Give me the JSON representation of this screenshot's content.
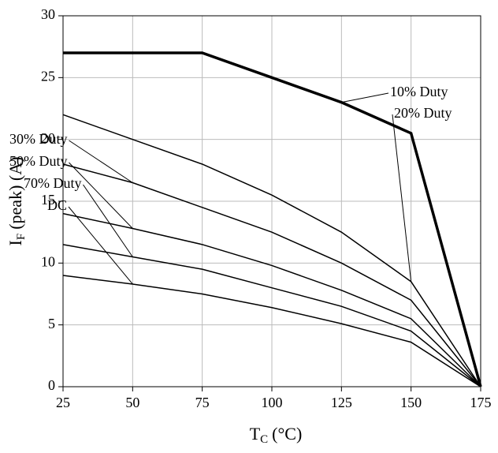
{
  "chart_data": {
    "type": "line",
    "x_label": {
      "symbol": "T",
      "subscript": "C",
      "unit": "(°C)"
    },
    "y_label": {
      "symbol": "I",
      "subscript": "F",
      "unit": "(peak) (A)"
    },
    "x": [
      25,
      50,
      75,
      100,
      125,
      150,
      175
    ],
    "series": [
      {
        "name": "10% Duty",
        "color": "#000000",
        "values": [
          27,
          27,
          27,
          25,
          23,
          20.5,
          0
        ]
      },
      {
        "name": "20% Duty",
        "color": "#000000",
        "values": [
          22,
          20,
          18,
          15.5,
          12.5,
          8.5,
          0
        ]
      },
      {
        "name": "30% Duty",
        "color": "#000000",
        "values": [
          18,
          16.5,
          14.5,
          12.5,
          10,
          7,
          0
        ]
      },
      {
        "name": "50% Duty",
        "color": "#000000",
        "values": [
          14,
          12.8,
          11.5,
          9.8,
          7.8,
          5.5,
          0
        ]
      },
      {
        "name": "70% Duty",
        "color": "#000000",
        "values": [
          11.5,
          10.5,
          9.5,
          8,
          6.5,
          4.5,
          0
        ]
      },
      {
        "name": "DC",
        "color": "#000000",
        "values": [
          9,
          8.3,
          7.5,
          6.4,
          5.1,
          3.6,
          0
        ]
      }
    ],
    "xlim": [
      25,
      175
    ],
    "xticks": [
      25,
      50,
      75,
      100,
      125,
      150,
      175
    ],
    "ylim": [
      0,
      30
    ],
    "yticks": [
      0,
      5,
      10,
      15,
      20,
      25,
      30
    ],
    "grid": true
  }
}
